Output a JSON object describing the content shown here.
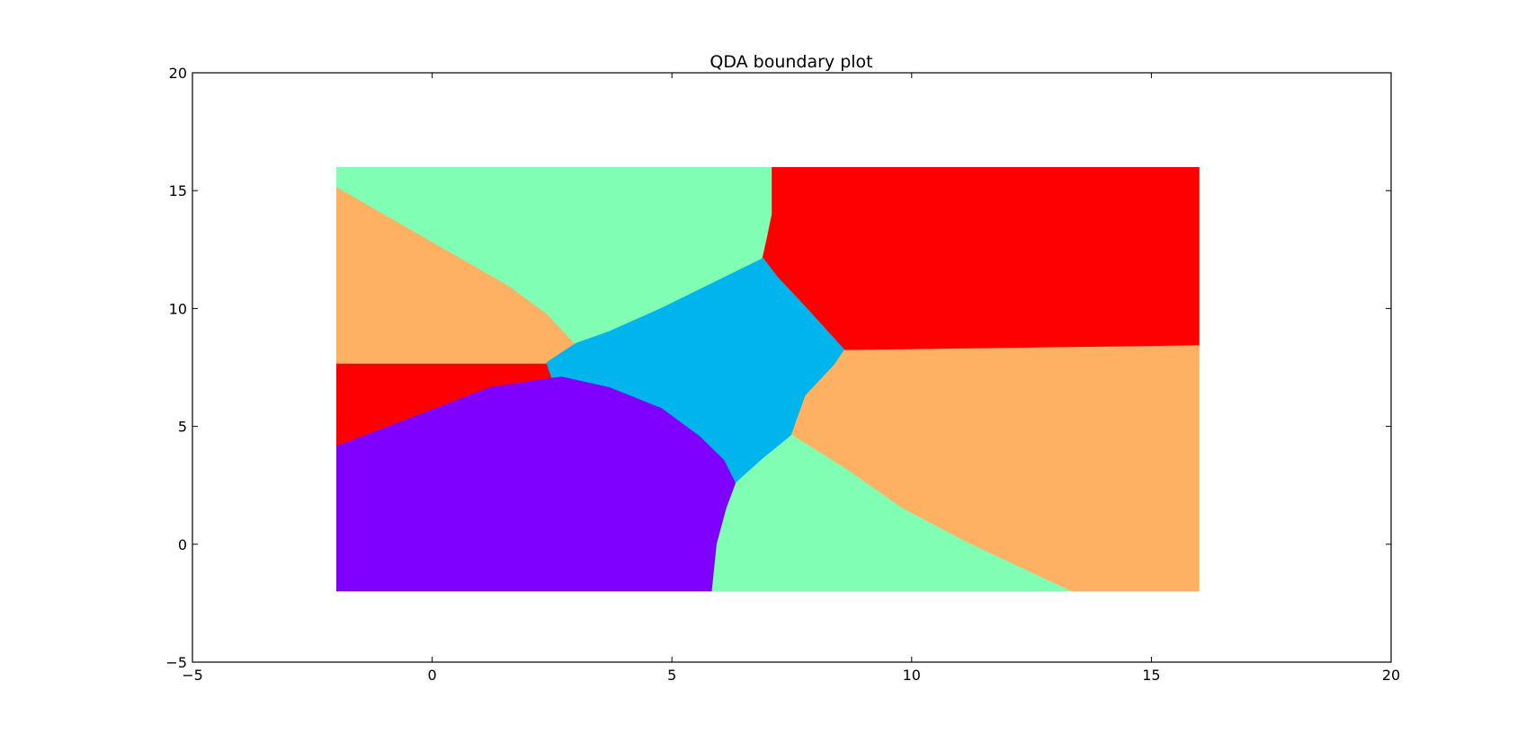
{
  "chart_data": {
    "type": "scatter",
    "title": "QDA boundary plot",
    "xlabel": "",
    "ylabel": "",
    "xlim": [
      -5,
      20
    ],
    "ylim": [
      -5,
      20
    ],
    "xticks": [
      "−5",
      "0",
      "5",
      "10",
      "15",
      "20"
    ],
    "yticks": [
      "−5",
      "0",
      "5",
      "10",
      "15",
      "20"
    ],
    "grid": false,
    "legend": "none",
    "grid_domain": {
      "x": [
        -2,
        16
      ],
      "y": [
        -2,
        16
      ]
    },
    "regions": [
      {
        "class": "purple",
        "color": "#8000ff",
        "boundary": [
          [
            -2,
            -2
          ],
          [
            5.85,
            -2
          ],
          [
            5.95,
            0
          ],
          [
            6.15,
            1.5
          ],
          [
            6.35,
            2.6
          ],
          [
            6.1,
            3.6
          ],
          [
            5.6,
            4.6
          ],
          [
            4.8,
            5.8
          ],
          [
            3.7,
            6.7
          ],
          [
            2.7,
            7.15
          ],
          [
            1.2,
            6.7
          ],
          [
            -0.2,
            5.6
          ],
          [
            -2,
            4.2
          ]
        ]
      },
      {
        "class": "red",
        "color": "#ff0000",
        "boundary": [
          [
            -2,
            4.2
          ],
          [
            -0.2,
            5.6
          ],
          [
            1.2,
            6.7
          ],
          [
            2.5,
            7.1
          ],
          [
            2.4,
            7.7
          ],
          [
            -2,
            7.7
          ]
        ]
      },
      {
        "class": "orange",
        "color": "#ffb163",
        "boundary": [
          [
            -2,
            7.7
          ],
          [
            2.4,
            7.7
          ],
          [
            3,
            8.5
          ],
          [
            2.4,
            9.8
          ],
          [
            1.6,
            11
          ],
          [
            -0.2,
            13.1
          ],
          [
            -2,
            15.2
          ]
        ]
      },
      {
        "class": "green",
        "color": "#80ffb4",
        "boundary": [
          [
            -2,
            15.2
          ],
          [
            -0.2,
            13.1
          ],
          [
            1.6,
            11
          ],
          [
            2.4,
            9.8
          ],
          [
            3,
            8.5
          ],
          [
            3.7,
            9
          ],
          [
            4.8,
            10
          ],
          [
            5.8,
            11
          ],
          [
            6.9,
            12.1
          ],
          [
            7,
            13
          ],
          [
            7.1,
            14
          ],
          [
            7.1,
            16
          ],
          [
            -2,
            16
          ]
        ]
      },
      {
        "class": "red",
        "color": "#ff0000",
        "boundary": [
          [
            7.1,
            16
          ],
          [
            7.1,
            14
          ],
          [
            7,
            13
          ],
          [
            6.9,
            12.1
          ],
          [
            7.2,
            11.3
          ],
          [
            7.8,
            10
          ],
          [
            8.6,
            8.2
          ],
          [
            16,
            8.4
          ],
          [
            16,
            16
          ]
        ]
      },
      {
        "class": "cyan",
        "color": "#00b5eb",
        "boundary": [
          [
            2.5,
            7.1
          ],
          [
            2.4,
            7.7
          ],
          [
            3,
            8.5
          ],
          [
            3.7,
            9
          ],
          [
            4.8,
            10
          ],
          [
            5.8,
            11
          ],
          [
            6.9,
            12.1
          ],
          [
            7.2,
            11.3
          ],
          [
            7.8,
            10
          ],
          [
            8.6,
            8.2
          ],
          [
            8.4,
            7.6
          ],
          [
            7.8,
            6.3
          ],
          [
            7.5,
            4.6
          ],
          [
            6.9,
            3.6
          ],
          [
            6.35,
            2.6
          ],
          [
            6.1,
            3.6
          ],
          [
            5.6,
            4.6
          ],
          [
            4.8,
            5.8
          ],
          [
            3.7,
            6.7
          ],
          [
            2.7,
            7.15
          ]
        ]
      },
      {
        "class": "orange",
        "color": "#ffb163",
        "boundary": [
          [
            8.6,
            8.2
          ],
          [
            16,
            8.4
          ],
          [
            16,
            -2
          ],
          [
            13.3,
            -2
          ],
          [
            11.2,
            0
          ],
          [
            9.8,
            1.5
          ],
          [
            8.6,
            3.2
          ],
          [
            7.5,
            4.6
          ],
          [
            7.8,
            6.3
          ],
          [
            8.4,
            7.6
          ]
        ]
      },
      {
        "class": "green",
        "color": "#80ffb4",
        "boundary": [
          [
            5.85,
            -2
          ],
          [
            13.3,
            -2
          ],
          [
            11.2,
            0
          ],
          [
            9.8,
            1.5
          ],
          [
            8.6,
            3.2
          ],
          [
            7.5,
            4.6
          ],
          [
            6.9,
            3.6
          ],
          [
            6.35,
            2.6
          ],
          [
            6.15,
            1.5
          ],
          [
            5.95,
            0
          ]
        ]
      }
    ]
  }
}
